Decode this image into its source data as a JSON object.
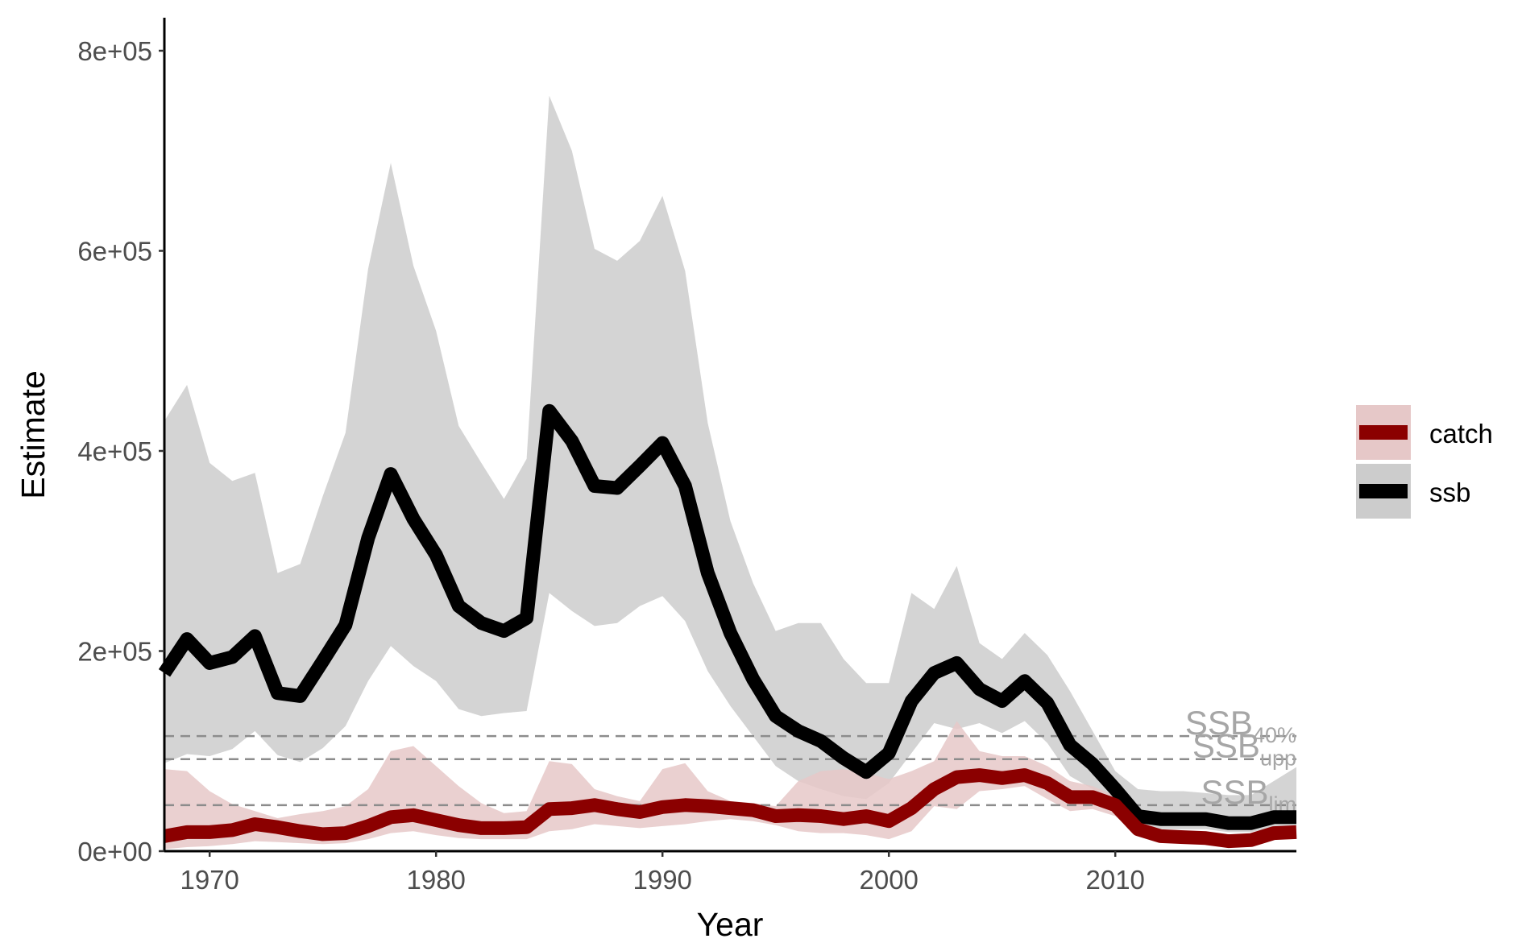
{
  "chart_data": {
    "type": "line",
    "title": "",
    "xlabel": "Year",
    "ylabel": "Estimate",
    "xlim": [
      1968,
      2018
    ],
    "ylim": [
      0,
      800000
    ],
    "x_ticks": [
      1970,
      1980,
      1990,
      2000,
      2010
    ],
    "x_tick_labels": [
      "1970",
      "1980",
      "1990",
      "2000",
      "2010"
    ],
    "y_ticks": [
      0,
      200000,
      400000,
      600000,
      800000
    ],
    "y_tick_labels": [
      "0e+00",
      "2e+05",
      "4e+05",
      "6e+05",
      "8e+05"
    ],
    "grid": false,
    "legend_position": "right",
    "x": [
      1968,
      1969,
      1970,
      1971,
      1972,
      1973,
      1974,
      1975,
      1976,
      1977,
      1978,
      1979,
      1980,
      1981,
      1982,
      1983,
      1984,
      1985,
      1986,
      1987,
      1988,
      1989,
      1990,
      1991,
      1992,
      1993,
      1994,
      1995,
      1996,
      1997,
      1998,
      1999,
      2000,
      2001,
      2002,
      2003,
      2004,
      2005,
      2006,
      2007,
      2008,
      2009,
      2010,
      2011,
      2012,
      2013,
      2014,
      2015,
      2016,
      2017,
      2018
    ],
    "series": [
      {
        "name": "catch",
        "color": "#8B0000",
        "band_color": "#e6c8c8",
        "values": [
          15000,
          19000,
          19000,
          21000,
          27000,
          24000,
          20000,
          17000,
          18000,
          25000,
          34000,
          36000,
          31000,
          26000,
          23000,
          23000,
          24000,
          42000,
          43000,
          46000,
          42000,
          39000,
          44000,
          46000,
          45000,
          43000,
          41000,
          35000,
          36000,
          35000,
          32000,
          35000,
          30000,
          43000,
          62000,
          74000,
          76000,
          73000,
          76000,
          68000,
          54000,
          54000,
          46000,
          22000,
          15000,
          14000,
          13000,
          10000,
          11000,
          18000,
          19000
        ],
        "lower": [
          2000,
          4000,
          5000,
          7000,
          10000,
          9000,
          8000,
          7000,
          8000,
          12000,
          18000,
          20000,
          16000,
          13000,
          12000,
          12000,
          12000,
          20000,
          22000,
          27000,
          25000,
          23000,
          25000,
          27000,
          30000,
          32000,
          30000,
          26000,
          20000,
          18000,
          18000,
          16000,
          12000,
          20000,
          45000,
          42000,
          60000,
          62000,
          65000,
          52000,
          40000,
          42000,
          35000,
          16000,
          11000,
          10000,
          9000,
          6000,
          7000,
          12000,
          13000
        ],
        "upper": [
          82000,
          80000,
          60000,
          47000,
          40000,
          33000,
          37000,
          40000,
          45000,
          62000,
          100000,
          105000,
          85000,
          65000,
          48000,
          38000,
          40000,
          90000,
          87000,
          62000,
          55000,
          50000,
          82000,
          88000,
          60000,
          50000,
          48000,
          45000,
          70000,
          80000,
          82000,
          78000,
          72000,
          80000,
          90000,
          130000,
          100000,
          95000,
          95000,
          85000,
          70000,
          65000,
          55000,
          30000,
          22000,
          20000,
          18000,
          15000,
          15000,
          25000,
          25000
        ]
      },
      {
        "name": "ssb",
        "color": "#000000",
        "band_color": "#cccccc",
        "values": [
          178000,
          212000,
          188000,
          194000,
          215000,
          158000,
          155000,
          190000,
          226000,
          313000,
          377000,
          332000,
          296000,
          245000,
          228000,
          220000,
          233000,
          440000,
          410000,
          365000,
          363000,
          385000,
          408000,
          365000,
          278000,
          218000,
          172000,
          135000,
          120000,
          110000,
          93000,
          79000,
          98000,
          150000,
          178000,
          188000,
          162000,
          150000,
          170000,
          148000,
          106000,
          87000,
          62000,
          35000,
          32000,
          32000,
          32000,
          28000,
          28000,
          34000,
          34000
        ],
        "lower": [
          88000,
          97000,
          95000,
          102000,
          120000,
          96000,
          89000,
          103000,
          125000,
          170000,
          205000,
          185000,
          170000,
          142000,
          135000,
          138000,
          140000,
          258000,
          240000,
          225000,
          228000,
          245000,
          255000,
          230000,
          180000,
          145000,
          115000,
          85000,
          70000,
          62000,
          55000,
          52000,
          68000,
          98000,
          128000,
          122000,
          128000,
          118000,
          130000,
          108000,
          75000,
          62000,
          42000,
          24000,
          22000,
          22000,
          22000,
          19000,
          19000,
          24000,
          24000
        ],
        "upper": [
          430000,
          466000,
          388000,
          370000,
          378000,
          278000,
          287000,
          355000,
          418000,
          582000,
          688000,
          585000,
          520000,
          425000,
          388000,
          352000,
          392000,
          755000,
          700000,
          602000,
          590000,
          610000,
          655000,
          580000,
          428000,
          330000,
          268000,
          220000,
          228000,
          228000,
          192000,
          168000,
          168000,
          258000,
          242000,
          285000,
          208000,
          192000,
          218000,
          196000,
          160000,
          120000,
          80000,
          62000,
          60000,
          60000,
          58000,
          56000,
          56000,
          70000,
          84000
        ]
      }
    ],
    "reference_lines": [
      {
        "label": "SSB",
        "subscript": "40%",
        "value": 115000
      },
      {
        "label": "SSB",
        "subscript": "upp",
        "value": 92000
      },
      {
        "label": "SSB",
        "subscript": "lim",
        "value": 46000
      }
    ]
  }
}
